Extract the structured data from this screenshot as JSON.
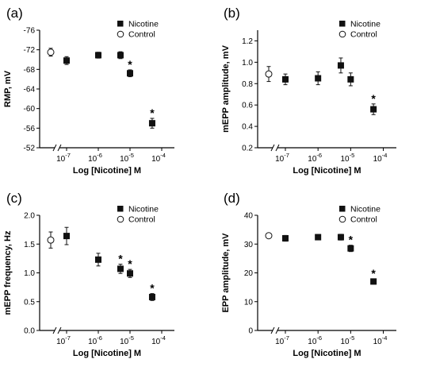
{
  "colors": {
    "nicotine": "#111111",
    "control": "#ffffff",
    "axis": "#000000"
  },
  "chart_data": [
    {
      "panel_label": "(a)",
      "type": "scatter",
      "xlabel": "Log [Nicotine] M",
      "ylabel": "RMP, mV",
      "x_scale": "log",
      "ylim": [
        -52,
        -76
      ],
      "y_inverted": true,
      "y_ticks": [
        "-76",
        "-72",
        "-68",
        "-64",
        "-60",
        "-56",
        "-52"
      ],
      "y_tick_values": [
        -76,
        -72,
        -68,
        -64,
        -60,
        -56,
        -52
      ],
      "x_ticks": [
        "10-7",
        "10-6",
        "10-5",
        "10-4"
      ],
      "x_tick_bases": [
        "10",
        "10",
        "10",
        "10"
      ],
      "x_tick_exponents": [
        "-7",
        "-6",
        "-5",
        "-4"
      ],
      "x_tick_values": [
        -7,
        -6,
        -5,
        -4
      ],
      "legend": [
        "Nicotine",
        "Control"
      ],
      "legend_position": "top-right",
      "series": [
        {
          "name": "Nicotine",
          "marker": "filled-square",
          "points": [
            {
              "x": 1e-07,
              "y": -69.8,
              "err": 0.8
            },
            {
              "x": 1e-06,
              "y": -70.9,
              "err": 0.6
            },
            {
              "x": 5e-06,
              "y": -70.9,
              "err": 0.7
            },
            {
              "x": 1e-05,
              "y": -67.2,
              "err": 0.7,
              "sig": "*"
            },
            {
              "x": 5e-05,
              "y": -57.0,
              "err": 1.0,
              "sig": "*"
            }
          ]
        },
        {
          "name": "Control",
          "marker": "open-circle",
          "points": [
            {
              "x": "control",
              "y": -71.5,
              "err": 0.8
            }
          ]
        }
      ]
    },
    {
      "panel_label": "(b)",
      "type": "scatter",
      "xlabel": "Log [Nicotine] M",
      "ylabel": "mEPP amplitude, mV",
      "x_scale": "log",
      "ylim": [
        0.2,
        1.3
      ],
      "y_ticks": [
        "0.2",
        "0.4",
        "0.6",
        "0.8",
        "1.0",
        "1.2"
      ],
      "y_tick_values": [
        0.2,
        0.4,
        0.6,
        0.8,
        1.0,
        1.2
      ],
      "x_ticks": [
        "10-7",
        "10-6",
        "10-5",
        "10-4"
      ],
      "x_tick_bases": [
        "10",
        "10",
        "10",
        "10"
      ],
      "x_tick_exponents": [
        "-7",
        "-6",
        "-5",
        "-4"
      ],
      "x_tick_values": [
        -7,
        -6,
        -5,
        -4
      ],
      "legend": [
        "Nicotine",
        "Control"
      ],
      "legend_position": "top-right",
      "series": [
        {
          "name": "Nicotine",
          "marker": "filled-square",
          "points": [
            {
              "x": 1e-07,
              "y": 0.84,
              "err": 0.05
            },
            {
              "x": 1e-06,
              "y": 0.85,
              "err": 0.06
            },
            {
              "x": 5e-06,
              "y": 0.97,
              "err": 0.07
            },
            {
              "x": 1e-05,
              "y": 0.84,
              "err": 0.06
            },
            {
              "x": 5e-05,
              "y": 0.56,
              "err": 0.05,
              "sig": "*"
            }
          ]
        },
        {
          "name": "Control",
          "marker": "open-circle",
          "points": [
            {
              "x": "control",
              "y": 0.89,
              "err": 0.07
            }
          ]
        }
      ]
    },
    {
      "panel_label": "(c)",
      "type": "scatter",
      "xlabel": "Log [Nicotine] M",
      "ylabel": "mEPP frequency, Hz",
      "x_scale": "log",
      "ylim": [
        0.0,
        2.0
      ],
      "y_ticks": [
        "0.0",
        "0.5",
        "1.0",
        "1.5",
        "2.0"
      ],
      "y_tick_values": [
        0.0,
        0.5,
        1.0,
        1.5,
        2.0
      ],
      "x_ticks": [
        "10-7",
        "10-6",
        "10-5",
        "10-4"
      ],
      "x_tick_bases": [
        "10",
        "10",
        "10",
        "10"
      ],
      "x_tick_exponents": [
        "-7",
        "-6",
        "-5",
        "-4"
      ],
      "x_tick_values": [
        -7,
        -6,
        -5,
        -4
      ],
      "legend": [
        "Nicotine",
        "Control"
      ],
      "legend_position": "top-right",
      "series": [
        {
          "name": "Nicotine",
          "marker": "filled-square",
          "points": [
            {
              "x": 1e-07,
              "y": 1.64,
              "err": 0.15
            },
            {
              "x": 1e-06,
              "y": 1.23,
              "err": 0.11
            },
            {
              "x": 5e-06,
              "y": 1.07,
              "err": 0.08,
              "sig": "*"
            },
            {
              "x": 1e-05,
              "y": 0.99,
              "err": 0.07,
              "sig": "*"
            },
            {
              "x": 5e-05,
              "y": 0.58,
              "err": 0.06,
              "sig": "*"
            }
          ]
        },
        {
          "name": "Control",
          "marker": "open-circle",
          "points": [
            {
              "x": "control",
              "y": 1.57,
              "err": 0.14
            }
          ]
        }
      ]
    },
    {
      "panel_label": "(d)",
      "type": "scatter",
      "xlabel": "Log [Nicotine] M",
      "ylabel": "EPP amplitude, mV",
      "x_scale": "log",
      "ylim": [
        0,
        40
      ],
      "y_ticks": [
        "0",
        "10",
        "20",
        "30",
        "40"
      ],
      "y_tick_values": [
        0,
        10,
        20,
        30,
        40
      ],
      "x_ticks": [
        "10-7",
        "10-6",
        "10-5",
        "10-4"
      ],
      "x_tick_bases": [
        "10",
        "10",
        "10",
        "10"
      ],
      "x_tick_exponents": [
        "-7",
        "-6",
        "-5",
        "-4"
      ],
      "x_tick_values": [
        -7,
        -6,
        -5,
        -4
      ],
      "legend": [
        "Nicotine",
        "Control"
      ],
      "legend_position": "top-right",
      "series": [
        {
          "name": "Nicotine",
          "marker": "filled-square",
          "points": [
            {
              "x": 1e-07,
              "y": 32.0,
              "err": 1.0
            },
            {
              "x": 1e-06,
              "y": 32.4,
              "err": 0.9
            },
            {
              "x": 5e-06,
              "y": 32.4,
              "err": 1.0
            },
            {
              "x": 1e-05,
              "y": 28.5,
              "err": 1.1,
              "sig": "*"
            },
            {
              "x": 5e-05,
              "y": 17.0,
              "err": 0.9,
              "sig": "*"
            }
          ]
        },
        {
          "name": "Control",
          "marker": "open-circle",
          "points": [
            {
              "x": "control",
              "y": 32.9,
              "err": 0.8
            }
          ]
        }
      ]
    }
  ]
}
